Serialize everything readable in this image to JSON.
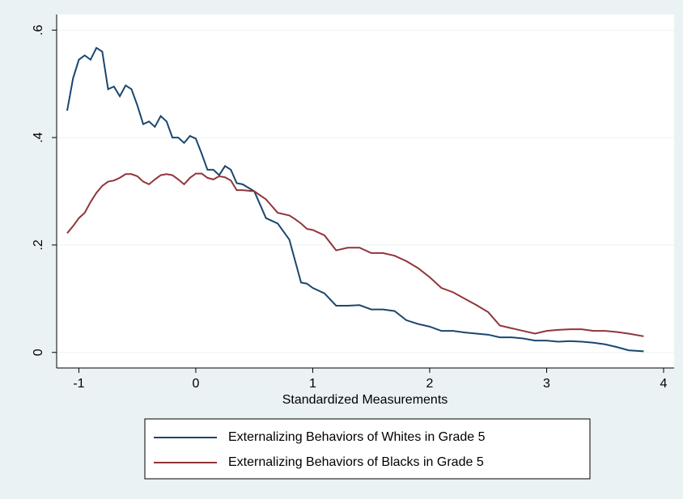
{
  "chart_data": {
    "type": "line",
    "x_label": "Standardized Measurements",
    "x": [
      -1.1,
      -1.05,
      -1.0,
      -0.95,
      -0.9,
      -0.85,
      -0.8,
      -0.75,
      -0.7,
      -0.65,
      -0.6,
      -0.55,
      -0.5,
      -0.45,
      -0.4,
      -0.35,
      -0.3,
      -0.25,
      -0.2,
      -0.15,
      -0.1,
      -0.05,
      0,
      0.05,
      0.1,
      0.15,
      0.2,
      0.25,
      0.3,
      0.35,
      0.4,
      0.5,
      0.6,
      0.7,
      0.8,
      0.85,
      0.9,
      0.95,
      1.0,
      1.1,
      1.2,
      1.3,
      1.4,
      1.5,
      1.6,
      1.7,
      1.8,
      1.9,
      2.0,
      2.1,
      2.2,
      2.3,
      2.4,
      2.5,
      2.6,
      2.7,
      2.8,
      2.9,
      3.0,
      3.1,
      3.2,
      3.3,
      3.4,
      3.5,
      3.6,
      3.7,
      3.83
    ],
    "series": [
      {
        "name": "Externalizing Behaviors of Whites in Grade 5",
        "color": "#1a476f",
        "values": [
          0.45,
          0.51,
          0.545,
          0.553,
          0.545,
          0.567,
          0.56,
          0.49,
          0.495,
          0.477,
          0.497,
          0.49,
          0.46,
          0.425,
          0.43,
          0.42,
          0.44,
          0.43,
          0.4,
          0.4,
          0.39,
          0.403,
          0.398,
          0.37,
          0.34,
          0.34,
          0.33,
          0.347,
          0.34,
          0.315,
          0.313,
          0.3,
          0.25,
          0.24,
          0.21,
          0.17,
          0.13,
          0.128,
          0.12,
          0.11,
          0.087,
          0.087,
          0.088,
          0.08,
          0.08,
          0.077,
          0.06,
          0.053,
          0.048,
          0.04,
          0.04,
          0.037,
          0.035,
          0.033,
          0.028,
          0.028,
          0.026,
          0.022,
          0.022,
          0.02,
          0.021,
          0.02,
          0.018,
          0.015,
          0.01,
          0.004,
          0.002
        ]
      },
      {
        "name": "Externalizing Behaviors of Blacks in Grade 5",
        "color": "#90353b",
        "values": [
          0.222,
          0.235,
          0.25,
          0.26,
          0.28,
          0.297,
          0.31,
          0.318,
          0.32,
          0.325,
          0.332,
          0.332,
          0.328,
          0.318,
          0.313,
          0.322,
          0.33,
          0.332,
          0.33,
          0.322,
          0.313,
          0.325,
          0.333,
          0.333,
          0.325,
          0.322,
          0.328,
          0.326,
          0.32,
          0.302,
          0.302,
          0.3,
          0.285,
          0.26,
          0.255,
          0.248,
          0.24,
          0.23,
          0.228,
          0.218,
          0.19,
          0.195,
          0.195,
          0.185,
          0.185,
          0.18,
          0.17,
          0.157,
          0.14,
          0.12,
          0.112,
          0.1,
          0.088,
          0.075,
          0.05,
          0.045,
          0.04,
          0.035,
          0.04,
          0.042,
          0.043,
          0.043,
          0.04,
          0.04,
          0.038,
          0.035,
          0.03
        ]
      }
    ],
    "xlim": [
      -1.19,
      4.09
    ],
    "ylim": [
      -0.029,
      0.629
    ],
    "xticks": [
      -1,
      0,
      1,
      2,
      3,
      4
    ],
    "yticks": [
      0,
      {
        "value": 0.2,
        "label": ".2"
      },
      {
        "value": 0.4,
        "label": ".4"
      },
      {
        "value": 0.6,
        "label": ".6"
      }
    ],
    "grid": true
  }
}
